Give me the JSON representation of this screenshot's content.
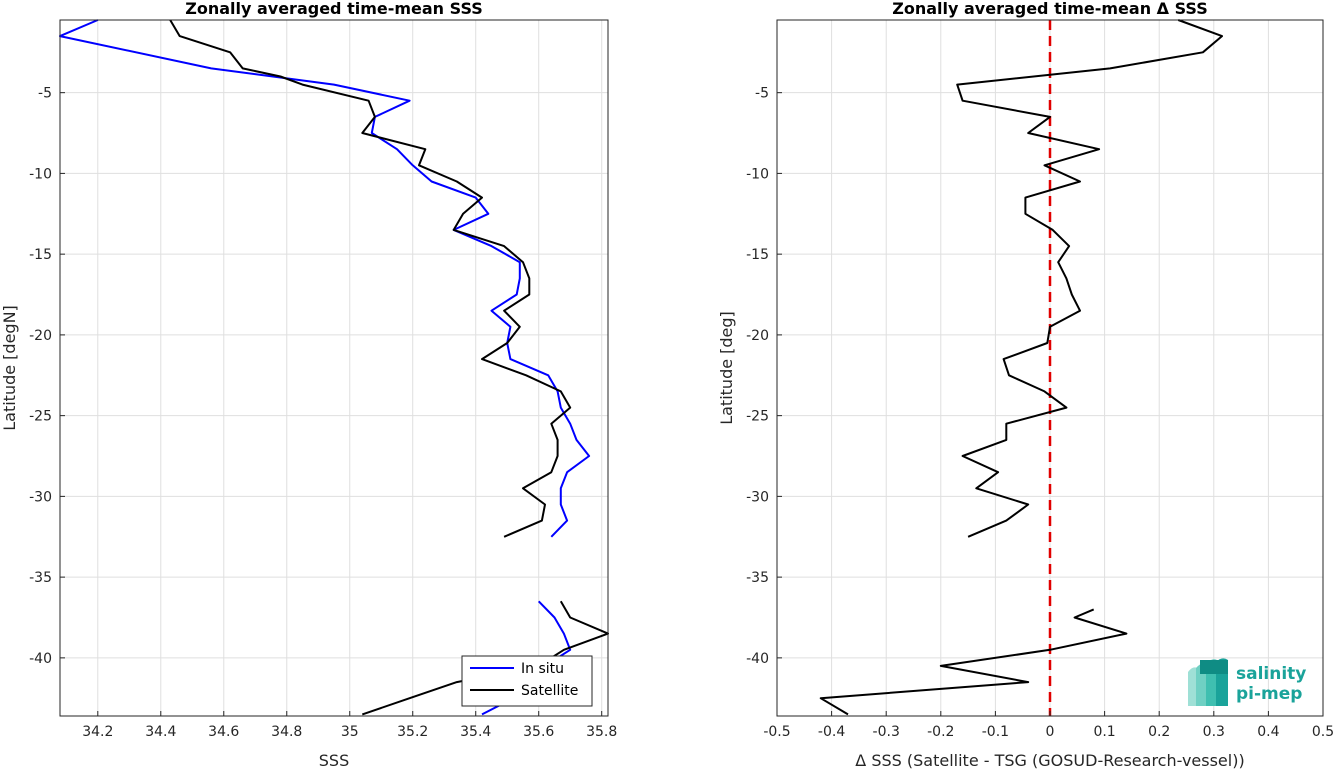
{
  "chart_data": [
    {
      "type": "line",
      "title": "Zonally averaged time-mean SSS",
      "xlabel": "SSS",
      "ylabel": "Latitude [degN]",
      "xlim": [
        34.08,
        35.82
      ],
      "ylim": [
        -43.6,
        -0.5
      ],
      "xticks": [
        34.2,
        34.4,
        34.6,
        34.8,
        35,
        35.2,
        35.4,
        35.6,
        35.8
      ],
      "xtick_labels": [
        "34.2",
        "34.4",
        "34.6",
        "34.8",
        "35",
        "35.2",
        "35.4",
        "35.6",
        "35.8"
      ],
      "yticks": [
        -5,
        -10,
        -15,
        -20,
        -25,
        -30,
        -35,
        -40
      ],
      "ytick_labels": [
        "-5",
        "-10",
        "-15",
        "-20",
        "-25",
        "-30",
        "-35",
        "-40"
      ],
      "grid": true,
      "legend_position": "bottom-right",
      "series": [
        {
          "name": "In situ",
          "color": "#0000ff",
          "segments": [
            [
              [
                34.2,
                -0.5
              ],
              [
                34.08,
                -1.5
              ],
              [
                34.56,
                -3.5
              ],
              [
                34.95,
                -4.5
              ],
              [
                35.19,
                -5.5
              ],
              [
                35.08,
                -6.5
              ],
              [
                35.07,
                -7.5
              ],
              [
                35.15,
                -8.5
              ],
              [
                35.2,
                -9.5
              ],
              [
                35.26,
                -10.5
              ],
              [
                35.4,
                -11.5
              ],
              [
                35.44,
                -12.5
              ],
              [
                35.33,
                -13.5
              ],
              [
                35.45,
                -14.5
              ],
              [
                35.54,
                -15.5
              ],
              [
                35.54,
                -16.5
              ],
              [
                35.53,
                -17.5
              ],
              [
                35.45,
                -18.5
              ],
              [
                35.51,
                -19.5
              ],
              [
                35.5,
                -20.5
              ],
              [
                35.51,
                -21.5
              ],
              [
                35.63,
                -22.5
              ],
              [
                35.66,
                -23.5
              ],
              [
                35.67,
                -24.5
              ],
              [
                35.7,
                -25.5
              ],
              [
                35.72,
                -26.5
              ],
              [
                35.76,
                -27.5
              ],
              [
                35.69,
                -28.5
              ],
              [
                35.67,
                -29.5
              ],
              [
                35.67,
                -30.5
              ],
              [
                35.69,
                -31.5
              ],
              [
                35.64,
                -32.5
              ]
            ],
            [
              [
                35.6,
                -36.5
              ],
              [
                35.65,
                -37.5
              ],
              [
                35.68,
                -38.5
              ],
              [
                35.7,
                -39.5
              ],
              [
                35.62,
                -40.5
              ],
              [
                35.55,
                -41.5
              ],
              [
                35.52,
                -42.5
              ],
              [
                35.42,
                -43.5
              ]
            ]
          ]
        },
        {
          "name": "Satellite",
          "color": "#000000",
          "segments": [
            [
              [
                34.43,
                -0.5
              ],
              [
                34.46,
                -1.5
              ],
              [
                34.62,
                -2.5
              ],
              [
                34.66,
                -3.5
              ],
              [
                34.78,
                -4.0
              ],
              [
                34.85,
                -4.5
              ],
              [
                35.06,
                -5.5
              ],
              [
                35.08,
                -6.5
              ],
              [
                35.04,
                -7.5
              ],
              [
                35.24,
                -8.5
              ],
              [
                35.22,
                -9.5
              ],
              [
                35.34,
                -10.5
              ],
              [
                35.42,
                -11.5
              ],
              [
                35.36,
                -12.5
              ],
              [
                35.33,
                -13.5
              ],
              [
                35.49,
                -14.5
              ],
              [
                35.55,
                -15.5
              ],
              [
                35.57,
                -16.5
              ],
              [
                35.57,
                -17.5
              ],
              [
                35.49,
                -18.5
              ],
              [
                35.54,
                -19.5
              ],
              [
                35.5,
                -20.5
              ],
              [
                35.42,
                -21.5
              ],
              [
                35.56,
                -22.5
              ],
              [
                35.67,
                -23.5
              ],
              [
                35.7,
                -24.5
              ],
              [
                35.64,
                -25.5
              ],
              [
                35.66,
                -26.5
              ],
              [
                35.66,
                -27.5
              ],
              [
                35.64,
                -28.5
              ],
              [
                35.55,
                -29.5
              ],
              [
                35.62,
                -30.5
              ],
              [
                35.61,
                -31.5
              ],
              [
                35.49,
                -32.5
              ]
            ],
            [
              [
                35.67,
                -36.5
              ],
              [
                35.7,
                -37.5
              ],
              [
                35.82,
                -38.5
              ],
              [
                35.68,
                -39.5
              ],
              [
                35.6,
                -40.5
              ],
              [
                35.34,
                -41.5
              ],
              [
                35.19,
                -42.5
              ],
              [
                35.04,
                -43.5
              ]
            ]
          ]
        }
      ]
    },
    {
      "type": "line",
      "title": "Zonally averaged time-mean Δ SSS",
      "xlabel": "Δ SSS (Satellite - TSG (GOSUD-Research-vessel))",
      "ylabel": "Latitude [deg]",
      "xlim": [
        -0.5,
        0.5
      ],
      "ylim": [
        -43.6,
        -0.5
      ],
      "xticks": [
        -0.5,
        -0.4,
        -0.3,
        -0.2,
        -0.1,
        0,
        0.1,
        0.2,
        0.3,
        0.4,
        0.5
      ],
      "xtick_labels": [
        "-0.5",
        "-0.4",
        "-0.3",
        "-0.2",
        "-0.1",
        "0",
        "0.1",
        "0.2",
        "0.3",
        "0.4",
        "0.5"
      ],
      "yticks": [
        -5,
        -10,
        -15,
        -20,
        -25,
        -30,
        -35,
        -40
      ],
      "ytick_labels": [
        "-5",
        "-10",
        "-15",
        "-20",
        "-25",
        "-30",
        "-35",
        "-40"
      ],
      "grid": true,
      "reference_line": {
        "x": 0,
        "color": "#e00000",
        "style": "dashed"
      },
      "series": [
        {
          "color": "#000000",
          "segments": [
            [
              [
                0.235,
                -0.5
              ],
              [
                0.315,
                -1.5
              ],
              [
                0.28,
                -2.5
              ],
              [
                0.11,
                -3.5
              ],
              [
                -0.17,
                -4.5
              ],
              [
                -0.16,
                -5.5
              ],
              [
                0,
                -6.5
              ],
              [
                -0.04,
                -7.5
              ],
              [
                0.09,
                -8.5
              ],
              [
                -0.01,
                -9.5
              ],
              [
                0.055,
                -10.5
              ],
              [
                -0.045,
                -11.5
              ],
              [
                -0.045,
                -12.5
              ],
              [
                0.005,
                -13.5
              ],
              [
                0.035,
                -14.5
              ],
              [
                0.015,
                -15.5
              ],
              [
                0.03,
                -16.5
              ],
              [
                0.04,
                -17.5
              ],
              [
                0.055,
                -18.5
              ],
              [
                0,
                -19.5
              ],
              [
                -0.005,
                -20.5
              ],
              [
                -0.085,
                -21.5
              ],
              [
                -0.075,
                -22.5
              ],
              [
                -0.01,
                -23.5
              ],
              [
                0.03,
                -24.5
              ],
              [
                -0.08,
                -25.5
              ],
              [
                -0.08,
                -26.5
              ],
              [
                -0.16,
                -27.5
              ],
              [
                -0.095,
                -28.5
              ],
              [
                -0.135,
                -29.5
              ],
              [
                -0.04,
                -30.5
              ],
              [
                -0.08,
                -31.5
              ],
              [
                -0.15,
                -32.5
              ]
            ],
            [
              [
                0.08,
                -37.0
              ],
              [
                0.045,
                -37.5
              ],
              [
                0.14,
                -38.5
              ],
              [
                0,
                -39.5
              ],
              [
                -0.2,
                -40.5
              ],
              [
                -0.04,
                -41.5
              ],
              [
                -0.42,
                -42.5
              ],
              [
                -0.37,
                -43.5
              ]
            ]
          ]
        }
      ]
    }
  ],
  "logo": {
    "line1": "salinity",
    "line2": "pi-mep"
  }
}
